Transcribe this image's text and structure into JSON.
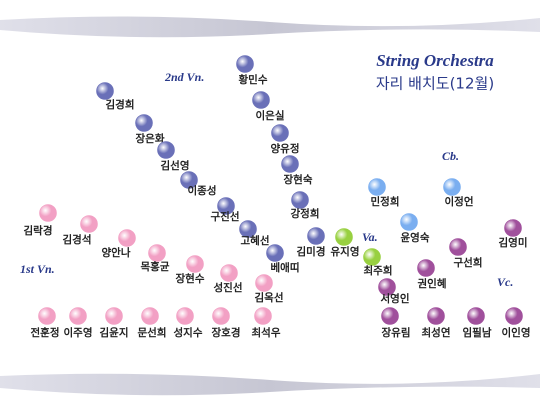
{
  "header": {
    "title": "String Orchestra",
    "subtitle": "자리 배치도(12월)"
  },
  "sections": [
    {
      "label": "2nd Vn.",
      "color": "#6a70b8",
      "members": [
        "황민수",
        "이은실",
        "김경희",
        "장은화",
        "양유정",
        "김선영",
        "장현숙",
        "이종성",
        "구진선",
        "강정희",
        "고혜선",
        "김미경",
        "베애띠"
      ]
    },
    {
      "label": "1st Vn.",
      "color": "#f2a0c4",
      "members": [
        "김락경",
        "김경석",
        "양안나",
        "목홍균",
        "장현수",
        "성진선",
        "김옥선",
        "전훈정",
        "이주영",
        "김윤지",
        "문선희",
        "성지수",
        "장호경",
        "최석우"
      ]
    },
    {
      "label": "Va.",
      "color": "#98d040",
      "members": [
        "유지영",
        "최주희"
      ]
    },
    {
      "label": "Cb.",
      "color": "#7aaef0",
      "members": [
        "민정희",
        "이정언",
        "윤영숙"
      ]
    },
    {
      "label": "Vc.",
      "color": "#a0509c",
      "members": [
        "김영미",
        "구선희",
        "권인혜",
        "서영인",
        "장유림",
        "최성연",
        "임필남",
        "이인영"
      ]
    }
  ]
}
